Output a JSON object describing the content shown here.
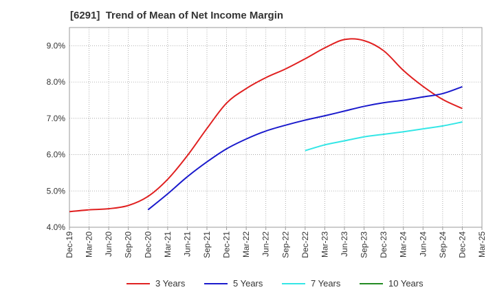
{
  "chart_data": {
    "type": "line",
    "title": "[6291]  Trend of Mean of Net Income Margin",
    "xlabel": "",
    "ylabel": "",
    "x": [
      "Dec-19",
      "Mar-20",
      "Jun-20",
      "Sep-20",
      "Dec-20",
      "Mar-21",
      "Jun-21",
      "Sep-21",
      "Dec-21",
      "Mar-22",
      "Jun-22",
      "Sep-22",
      "Dec-22",
      "Mar-23",
      "Jun-23",
      "Sep-23",
      "Dec-23",
      "Mar-24",
      "Jun-24",
      "Sep-24",
      "Dec-24",
      "Mar-25"
    ],
    "ylim": [
      4.0,
      9.5
    ],
    "yticks": [
      "4.0%",
      "5.0%",
      "6.0%",
      "7.0%",
      "8.0%",
      "9.0%"
    ],
    "grid": true,
    "legend_position": "bottom",
    "series": [
      {
        "name": "3 Years",
        "color": "#e02020",
        "values": [
          4.43,
          4.48,
          4.51,
          4.6,
          4.85,
          5.32,
          5.97,
          6.72,
          7.42,
          7.82,
          8.12,
          8.36,
          8.64,
          8.94,
          9.17,
          9.14,
          8.86,
          8.32,
          7.88,
          7.52,
          7.27,
          null
        ]
      },
      {
        "name": "5 Years",
        "color": "#1a1acc",
        "values": [
          null,
          null,
          null,
          null,
          4.48,
          4.92,
          5.39,
          5.8,
          6.16,
          6.43,
          6.65,
          6.81,
          6.95,
          7.07,
          7.2,
          7.33,
          7.43,
          7.5,
          7.59,
          7.68,
          7.87,
          null
        ]
      },
      {
        "name": "7 Years",
        "color": "#33e6e6",
        "values": [
          null,
          null,
          null,
          null,
          null,
          null,
          null,
          null,
          null,
          null,
          null,
          null,
          6.11,
          6.27,
          6.38,
          6.49,
          6.56,
          6.63,
          6.71,
          6.79,
          6.9,
          null
        ]
      },
      {
        "name": "10 Years",
        "color": "#228b22",
        "values": [
          null,
          null,
          null,
          null,
          null,
          null,
          null,
          null,
          null,
          null,
          null,
          null,
          null,
          null,
          null,
          null,
          null,
          null,
          null,
          null,
          null,
          null
        ]
      }
    ]
  }
}
